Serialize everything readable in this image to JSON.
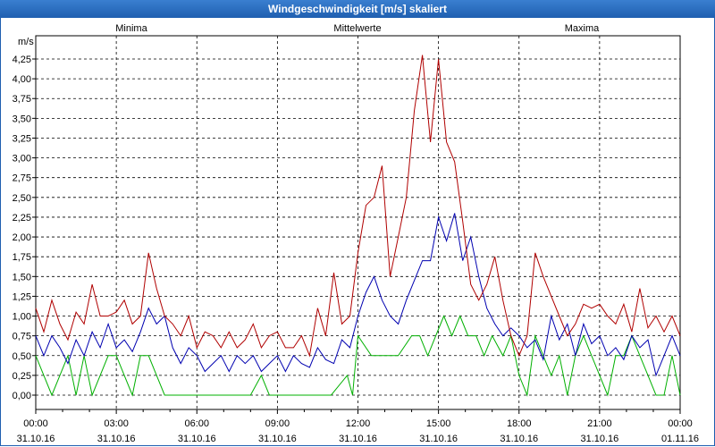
{
  "window": {
    "title": "Windgeschwindigkeit [m/s] skaliert"
  },
  "chart_data": {
    "type": "line",
    "title": "Windgeschwindigkeit [m/s] skaliert",
    "ylabel": "m/s",
    "ylim": [
      0,
      4.5
    ],
    "y_ticks": [
      "0,00",
      "0,25",
      "0,50",
      "0,75",
      "1,00",
      "1,25",
      "1,50",
      "1,75",
      "2,00",
      "2,25",
      "2,50",
      "2,75",
      "3,00",
      "3,25",
      "3,50",
      "3,75",
      "4,00",
      "4,25"
    ],
    "x_ticks": [
      {
        "time": "00:00",
        "date": "31.10.16"
      },
      {
        "time": "03:00",
        "date": "31.10.16"
      },
      {
        "time": "06:00",
        "date": "31.10.16"
      },
      {
        "time": "09:00",
        "date": "31.10.16"
      },
      {
        "time": "12:00",
        "date": "31.10.16"
      },
      {
        "time": "15:00",
        "date": "31.10.16"
      },
      {
        "time": "18:00",
        "date": "31.10.16"
      },
      {
        "time": "21:00",
        "date": "31.10.16"
      },
      {
        "time": "00:00",
        "date": "01.11.16"
      }
    ],
    "x_hours": [
      0,
      24
    ],
    "grid": true,
    "colors": {
      "minima": "#00b000",
      "mittelwerte": "#0000b0",
      "maxima": "#b00000"
    },
    "series": [
      {
        "name": "Minima",
        "color": "#00b000",
        "x": [
          0,
          0.3,
          0.6,
          0.9,
          1.2,
          1.5,
          1.8,
          2.1,
          2.4,
          2.7,
          3,
          3.3,
          3.6,
          3.9,
          4.2,
          4.5,
          4.8,
          5.1,
          5.4,
          5.7,
          6,
          7,
          8,
          8.4,
          8.7,
          9,
          10,
          11,
          11.6,
          11.8,
          12,
          12.5,
          13,
          13.5,
          14,
          14.3,
          14.6,
          14.9,
          15.2,
          15.5,
          15.8,
          16.1,
          16.4,
          16.7,
          17,
          17.4,
          17.7,
          18,
          18.3,
          18.6,
          18.9,
          19.2,
          19.5,
          19.8,
          20.1,
          20.4,
          20.7,
          21,
          21.3,
          21.6,
          21.9,
          22.2,
          22.5,
          22.8,
          23.1,
          23.4,
          23.7,
          24
        ],
        "values": [
          0.5,
          0.25,
          0.0,
          0.25,
          0.5,
          0.0,
          0.5,
          0.0,
          0.25,
          0.5,
          0.5,
          0.25,
          0.0,
          0.5,
          0.5,
          0.25,
          0.0,
          0.0,
          0.0,
          0.0,
          0.0,
          0.0,
          0.0,
          0.25,
          0.0,
          0.0,
          0.0,
          0.0,
          0.25,
          0.0,
          0.75,
          0.5,
          0.5,
          0.5,
          0.75,
          0.75,
          0.5,
          0.75,
          1.0,
          0.75,
          1.0,
          0.75,
          0.75,
          0.5,
          0.75,
          0.5,
          0.75,
          0.25,
          0.0,
          0.75,
          0.5,
          0.25,
          0.5,
          0.0,
          0.5,
          0.75,
          0.5,
          0.25,
          0.0,
          0.5,
          0.5,
          0.75,
          0.5,
          0.25,
          0.0,
          0.0,
          0.5,
          0.0
        ]
      },
      {
        "name": "Mittelwerte",
        "color": "#0000b0",
        "x": [
          0,
          0.3,
          0.6,
          0.9,
          1.2,
          1.5,
          1.8,
          2.1,
          2.4,
          2.7,
          3,
          3.3,
          3.6,
          3.9,
          4.2,
          4.5,
          4.8,
          5.1,
          5.4,
          5.7,
          6,
          6.3,
          6.6,
          6.9,
          7.2,
          7.5,
          7.8,
          8.1,
          8.4,
          8.7,
          9,
          9.3,
          9.6,
          9.9,
          10.2,
          10.5,
          10.8,
          11.1,
          11.4,
          11.7,
          12,
          12.3,
          12.6,
          12.9,
          13.2,
          13.5,
          13.8,
          14.1,
          14.4,
          14.7,
          15,
          15.3,
          15.6,
          15.9,
          16.2,
          16.5,
          16.8,
          17.1,
          17.4,
          17.7,
          18,
          18.3,
          18.6,
          18.9,
          19.2,
          19.5,
          19.8,
          20.1,
          20.4,
          20.7,
          21,
          21.3,
          21.6,
          21.9,
          22.2,
          22.5,
          22.8,
          23.1,
          23.4,
          23.7,
          24
        ],
        "values": [
          0.75,
          0.5,
          0.75,
          0.6,
          0.4,
          0.7,
          0.5,
          0.8,
          0.6,
          0.9,
          0.6,
          0.7,
          0.55,
          0.8,
          1.1,
          0.9,
          1.0,
          0.6,
          0.4,
          0.6,
          0.5,
          0.3,
          0.4,
          0.5,
          0.3,
          0.5,
          0.4,
          0.5,
          0.3,
          0.4,
          0.5,
          0.3,
          0.5,
          0.4,
          0.35,
          0.6,
          0.45,
          0.4,
          0.7,
          0.6,
          1.0,
          1.3,
          1.5,
          1.2,
          1.0,
          0.9,
          1.2,
          1.45,
          1.7,
          1.7,
          2.25,
          1.95,
          2.3,
          1.7,
          2.0,
          1.5,
          1.1,
          0.9,
          0.75,
          0.85,
          0.75,
          0.6,
          0.7,
          0.45,
          1.0,
          0.7,
          0.9,
          0.5,
          0.9,
          0.65,
          0.75,
          0.5,
          0.6,
          0.45,
          0.75,
          0.6,
          0.7,
          0.25,
          0.5,
          0.75,
          0.5
        ]
      },
      {
        "name": "Maxima",
        "color": "#b00000",
        "x": [
          0,
          0.3,
          0.6,
          0.9,
          1.2,
          1.5,
          1.8,
          2.1,
          2.4,
          2.7,
          3,
          3.3,
          3.6,
          3.9,
          4.2,
          4.5,
          4.8,
          5.1,
          5.4,
          5.7,
          6,
          6.3,
          6.6,
          6.9,
          7.2,
          7.5,
          7.8,
          8.1,
          8.4,
          8.7,
          9,
          9.3,
          9.6,
          9.9,
          10.2,
          10.5,
          10.8,
          11.1,
          11.4,
          11.7,
          12,
          12.3,
          12.6,
          12.9,
          13.2,
          13.5,
          13.8,
          14.1,
          14.4,
          14.7,
          15,
          15.3,
          15.6,
          15.9,
          16.2,
          16.5,
          16.8,
          17.1,
          17.4,
          17.7,
          18,
          18.3,
          18.6,
          18.9,
          19.2,
          19.5,
          19.8,
          20.1,
          20.4,
          20.7,
          21,
          21.3,
          21.6,
          21.9,
          22.2,
          22.5,
          22.8,
          23.1,
          23.4,
          23.7,
          24
        ],
        "values": [
          1.1,
          0.8,
          1.2,
          0.9,
          0.7,
          1.05,
          0.9,
          1.4,
          1.0,
          1.0,
          1.05,
          1.2,
          0.9,
          1.0,
          1.8,
          1.35,
          1.0,
          0.9,
          0.75,
          1.0,
          0.6,
          0.8,
          0.75,
          0.6,
          0.8,
          0.6,
          0.7,
          0.9,
          0.6,
          0.75,
          0.8,
          0.6,
          0.6,
          0.75,
          0.5,
          1.1,
          0.75,
          1.55,
          0.9,
          1.0,
          1.8,
          2.4,
          2.5,
          2.9,
          1.5,
          2.0,
          2.5,
          3.6,
          4.3,
          3.2,
          4.25,
          3.2,
          2.95,
          2.2,
          1.4,
          1.2,
          1.4,
          1.75,
          1.2,
          0.75,
          0.5,
          0.75,
          1.8,
          1.5,
          1.25,
          1.0,
          0.75,
          0.9,
          1.15,
          1.1,
          1.15,
          1.0,
          0.9,
          1.15,
          0.8,
          1.35,
          0.85,
          1.0,
          0.8,
          1.0,
          0.75
        ]
      }
    ],
    "legend": [
      "Minima",
      "Mittelwerte",
      "Maxima"
    ]
  }
}
